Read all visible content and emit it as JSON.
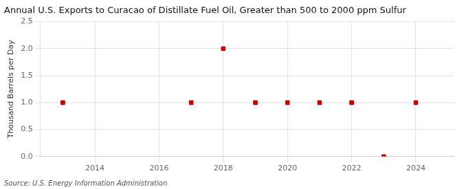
{
  "chart_data": {
    "type": "scatter",
    "title": "Annual U.S. Exports to Curacao of Distillate Fuel Oil, Greater than 500 to 2000 ppm Sulfur",
    "ylabel": "Thousand Barrels per Day",
    "annotations": [
      "Source: U.S. Energy Information Administration"
    ],
    "x": [
      2013,
      2017,
      2018,
      2019,
      2020,
      2021,
      2022,
      2023,
      2024
    ],
    "values": [
      1.0,
      1.0,
      2.0,
      1.0,
      1.0,
      1.0,
      1.0,
      0.0,
      1.0
    ],
    "color": "#cc0000",
    "marker": "square",
    "xlim": [
      2012.3,
      2025.2
    ],
    "xticks": [
      2014,
      2016,
      2018,
      2020,
      2022,
      2024
    ],
    "ylim": [
      0.0,
      2.5
    ],
    "yticks": [
      {
        "value": 0,
        "label": "0.0"
      },
      0.5,
      {
        "value": 1,
        "label": "1.0"
      },
      1.5,
      {
        "value": 2,
        "label": "2.0"
      },
      2.5
    ],
    "grid": true
  }
}
